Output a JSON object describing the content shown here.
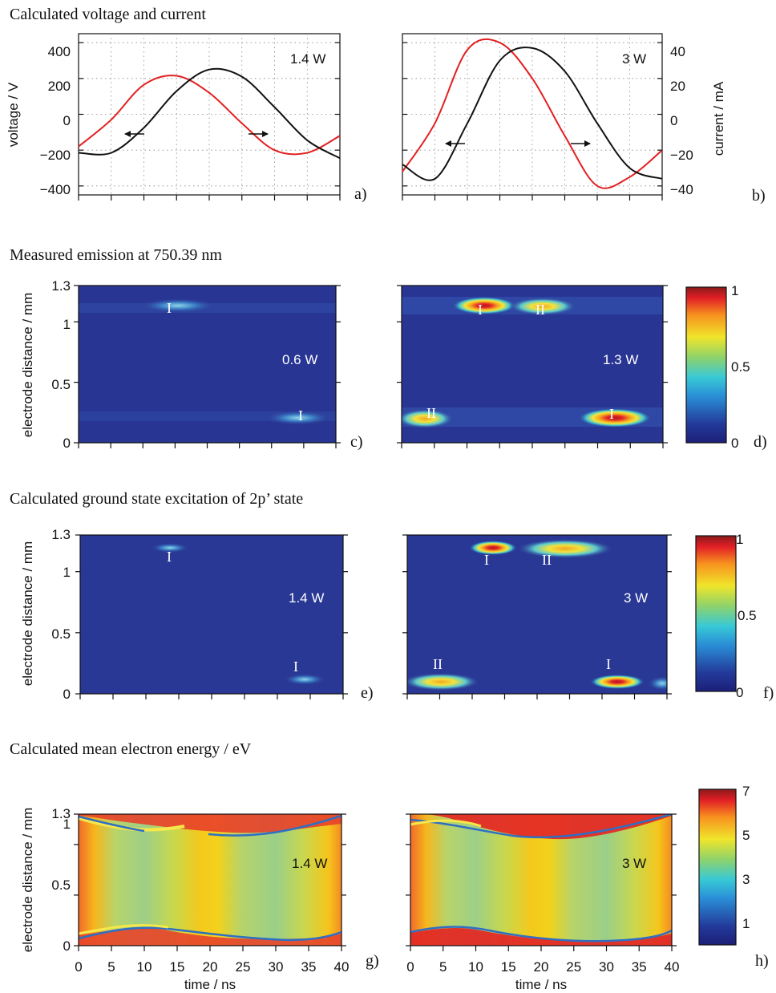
{
  "titles": {
    "row1": "Calculated voltage and current",
    "row2": "Measured emission at 750.39 nm",
    "row3": "Calculated ground state excitation of 2p’ state",
    "row4": "Calculated mean electron energy / eV"
  },
  "chart_data": [
    {
      "panel": "a)",
      "type": "line",
      "power": "1.4 W",
      "ylabel": "voltage / V",
      "ylim": [
        -450,
        450
      ],
      "yticks": [
        "400",
        "200",
        "0",
        "−200",
        "−400"
      ],
      "xlim": [
        0,
        40
      ],
      "series": [
        {
          "color": "#e32020",
          "x": [
            0,
            5,
            10,
            15,
            20,
            25,
            30,
            35,
            40
          ],
          "values": [
            -180,
            -30,
            165,
            215,
            120,
            -50,
            -200,
            -215,
            -120
          ]
        },
        {
          "color": "#111111",
          "x": [
            0,
            5,
            10,
            15,
            20,
            25,
            30,
            35,
            40
          ],
          "values": [
            -215,
            -215,
            -75,
            130,
            250,
            210,
            40,
            -145,
            -245
          ]
        }
      ]
    },
    {
      "panel": "b)",
      "type": "line",
      "power": "3 W",
      "ylabel": "current / mA",
      "ylim": [
        -45,
        45
      ],
      "yticks": [
        "40",
        "20",
        "0",
        "−20",
        "−40"
      ],
      "xlim": [
        0,
        40
      ],
      "series": [
        {
          "color": "#e32020",
          "x": [
            0,
            5,
            10,
            15,
            20,
            25,
            30,
            35,
            40
          ],
          "values": [
            -32,
            -5,
            36,
            40,
            20,
            -12,
            -40,
            -35,
            -20
          ]
        },
        {
          "color": "#111111",
          "x": [
            0,
            5,
            10,
            15,
            20,
            25,
            30,
            35,
            40
          ],
          "values": [
            -28,
            -36,
            -5,
            30,
            37,
            24,
            -5,
            -30,
            -36
          ]
        }
      ]
    },
    {
      "panel": "c)",
      "type": "heatmap",
      "power": "0.6 W",
      "ylabel": "electrode distance / mm",
      "ylim": [
        0,
        1.3
      ],
      "yticks": [
        "1.3",
        "1",
        "0.5",
        "0"
      ],
      "xlim": [
        0,
        40
      ],
      "peaks": [
        {
          "label": "I",
          "x": 13,
          "y": 1.13,
          "value": 0.3
        },
        {
          "label": "I",
          "x": 35,
          "y": 0.2,
          "value": 0.3
        }
      ]
    },
    {
      "panel": "d)",
      "type": "heatmap",
      "power": "1.3 W",
      "ylim": [
        0,
        1.3
      ],
      "xlim": [
        0,
        40
      ],
      "colorbar": {
        "min": 0,
        "max": 1,
        "ticks": [
          "1",
          "0.5",
          "0"
        ]
      },
      "peaks": [
        {
          "label": "I",
          "x": 12,
          "y": 1.13,
          "value": 0.95
        },
        {
          "label": "II",
          "x": 22,
          "y": 1.12,
          "value": 0.55
        },
        {
          "label": "II",
          "x": 3,
          "y": 0.18,
          "value": 0.6
        },
        {
          "label": "I",
          "x": 32,
          "y": 0.19,
          "value": 1.0
        }
      ]
    },
    {
      "panel": "e)",
      "type": "heatmap",
      "power": "1.4 W",
      "ylabel": "electrode distance / mm",
      "ylim": [
        0,
        1.3
      ],
      "yticks": [
        "1.3",
        "1",
        "0.5",
        "0"
      ],
      "xlim": [
        0,
        40
      ],
      "peaks": [
        {
          "label": "I",
          "x": 14,
          "y": 1.21,
          "value": 0.25
        },
        {
          "label": "I",
          "x": 35,
          "y": 0.13,
          "value": 0.25
        }
      ]
    },
    {
      "panel": "f)",
      "type": "heatmap",
      "power": "3 W",
      "ylim": [
        0,
        1.3
      ],
      "xlim": [
        0,
        40
      ],
      "colorbar": {
        "min": 0,
        "max": 1,
        "ticks": [
          "1",
          "0.5",
          "0"
        ]
      },
      "peaks": [
        {
          "label": "I",
          "x": 13,
          "y": 1.2,
          "value": 1.0
        },
        {
          "label": "II",
          "x": 24,
          "y": 1.2,
          "value": 0.75
        },
        {
          "label": "II",
          "x": 5,
          "y": 0.1,
          "value": 0.75
        },
        {
          "label": "I",
          "x": 32,
          "y": 0.1,
          "value": 1.0
        }
      ]
    },
    {
      "panel": "g)",
      "type": "heatmap",
      "power": "1.4 W",
      "ylabel": "electrode distance / mm",
      "xlabel": "time / ns",
      "ylim": [
        0,
        1.3
      ],
      "yticks": [
        "1.3",
        "1",
        "0.5",
        "0"
      ],
      "xlim": [
        0,
        40
      ],
      "xticks": [
        "0",
        "5",
        "10",
        "15",
        "20",
        "25",
        "30",
        "35",
        "40"
      ]
    },
    {
      "panel": "h)",
      "type": "heatmap",
      "power": "3 W",
      "xlabel": "time / ns",
      "ylim": [
        0,
        1.3
      ],
      "xlim": [
        0,
        40
      ],
      "xticks": [
        "0",
        "5",
        "10",
        "15",
        "20",
        "25",
        "30",
        "35",
        "40"
      ],
      "colorbar": {
        "min": 0,
        "max": 7,
        "ticks": [
          "7",
          "5",
          "3",
          "1"
        ]
      }
    }
  ]
}
